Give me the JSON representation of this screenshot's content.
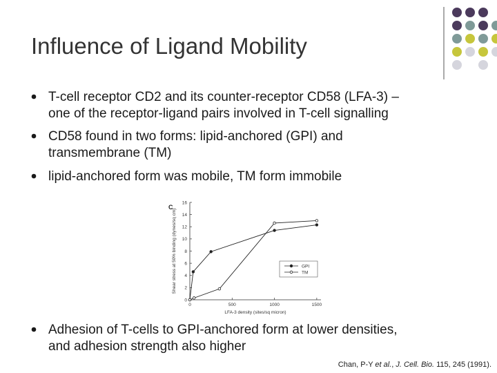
{
  "title": "Influence of Ligand Mobility",
  "bullets": [
    [
      "T-cell receptor CD2 and its counter-receptor CD58 (LFA-3) –",
      "one of the receptor-ligand pairs involved in T-cell signalling"
    ],
    [
      "CD58 found in two forms: lipid-anchored (GPI) and",
      "transmembrane (TM)"
    ],
    [
      "lipid-anchored form was mobile, TM form immobile"
    ],
    [
      "Adhesion of T-cells to GPI-anchored form at lower densities,",
      "and adhesion strength also higher"
    ]
  ],
  "citation": [
    "Chan, P-Y ",
    "et al.",
    ", ",
    "J. Cell. Bio.",
    " 115, 245 (1991)."
  ],
  "figure": {
    "chart_data": {
      "type": "line",
      "panel": "C",
      "x_label": "LFA-3 density (sites/sq micron)",
      "y_label": "Shear stress at 50% binding (dynes/sq cm)",
      "xlim": [
        0,
        1550
      ],
      "xticks": [
        0,
        500,
        1000,
        1500
      ],
      "ylim": [
        0,
        16
      ],
      "yticks": [
        0,
        2,
        4,
        6,
        8,
        10,
        12,
        14,
        16
      ],
      "series": [
        {
          "name": "GPI",
          "color": "#222222",
          "marker": "filled",
          "x": [
            0,
            40,
            250,
            1000,
            1500
          ],
          "values": [
            0,
            4.6,
            7.9,
            11.4,
            12.3
          ]
        },
        {
          "name": "TM",
          "color": "#222222",
          "marker": "open",
          "x": [
            0,
            50,
            350,
            1000,
            1500
          ],
          "values": [
            0,
            0.3,
            1.8,
            12.6,
            13
          ]
        }
      ]
    }
  }
}
